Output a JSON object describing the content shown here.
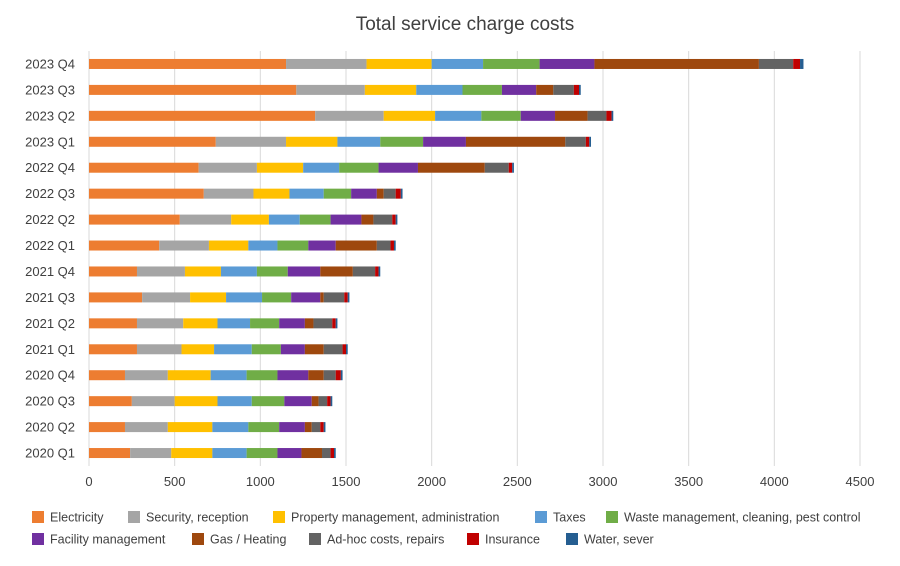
{
  "chart_data": {
    "type": "bar",
    "orientation": "horizontal",
    "stacked": true,
    "title": "Total service charge costs",
    "xlabel": "",
    "ylabel": "",
    "xlim": [
      0,
      4500
    ],
    "xticks": [
      0,
      500,
      1000,
      1500,
      2000,
      2500,
      3000,
      3500,
      4000,
      4500
    ],
    "grid": "vertical",
    "legend_position": "bottom",
    "categories": [
      "2023 Q4",
      "2023 Q3",
      "2023 Q2",
      "2023 Q1",
      "2022 Q4",
      "2022 Q3",
      "2022 Q2",
      "2022 Q1",
      "2021 Q4",
      "2021 Q3",
      "2021 Q2",
      "2021 Q1",
      "2020 Q4",
      "2020 Q3",
      "2020 Q2",
      "2020 Q1"
    ],
    "series": [
      {
        "name": "Electricity",
        "color": "#ED7D31",
        "values": [
          1150,
          1210,
          1320,
          740,
          640,
          670,
          530,
          410,
          280,
          310,
          280,
          280,
          210,
          250,
          210,
          240
        ]
      },
      {
        "name": "Security, reception",
        "color": "#A5A5A5",
        "values": [
          470,
          400,
          400,
          410,
          340,
          290,
          300,
          290,
          280,
          280,
          270,
          260,
          250,
          250,
          250,
          240
        ]
      },
      {
        "name": "Property management, administration",
        "color": "#FFC000",
        "values": [
          380,
          300,
          300,
          300,
          270,
          210,
          220,
          230,
          210,
          210,
          200,
          190,
          250,
          250,
          260,
          240
        ]
      },
      {
        "name": "Taxes",
        "color": "#5B9BD5",
        "values": [
          300,
          270,
          270,
          250,
          210,
          200,
          180,
          170,
          210,
          210,
          190,
          220,
          210,
          200,
          210,
          200
        ]
      },
      {
        "name": "Waste management, cleaning, pest control",
        "color": "#70AD47",
        "values": [
          330,
          230,
          230,
          250,
          230,
          160,
          180,
          180,
          180,
          170,
          170,
          170,
          180,
          190,
          180,
          180
        ]
      },
      {
        "name": "Facility management",
        "color": "#7030A0",
        "values": [
          320,
          200,
          200,
          250,
          230,
          150,
          180,
          160,
          190,
          170,
          150,
          140,
          180,
          160,
          150,
          140
        ]
      },
      {
        "name": "Gas / Heating",
        "color": "#9E480E",
        "values": [
          960,
          100,
          190,
          580,
          390,
          40,
          70,
          240,
          190,
          20,
          50,
          110,
          90,
          40,
          40,
          120
        ]
      },
      {
        "name": "Ad-hoc costs, repairs",
        "color": "#636363",
        "values": [
          200,
          120,
          110,
          120,
          140,
          70,
          110,
          80,
          130,
          120,
          110,
          110,
          70,
          50,
          50,
          50
        ]
      },
      {
        "name": "Insurance",
        "color": "#C00000",
        "values": [
          40,
          30,
          30,
          20,
          20,
          30,
          20,
          20,
          20,
          20,
          20,
          20,
          30,
          20,
          20,
          20
        ]
      },
      {
        "name": "Water, sever",
        "color": "#255E91",
        "values": [
          20,
          10,
          10,
          10,
          10,
          10,
          10,
          10,
          10,
          10,
          10,
          10,
          10,
          10,
          10,
          10
        ]
      }
    ]
  }
}
